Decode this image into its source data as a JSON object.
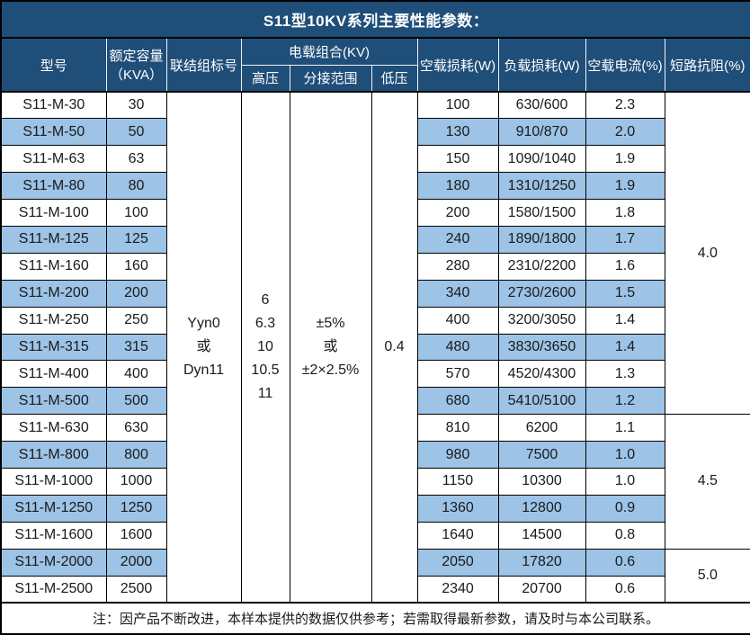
{
  "chart_data": {
    "type": "table",
    "title": "S11型10KV系列主要性能参数：",
    "columns": [
      "型号",
      "额定容量（KVA）",
      "联结组标号",
      "电载组合(KV)-高压",
      "电载组合(KV)-分接范围",
      "电载组合(KV)-低压",
      "空载损耗(W)",
      "负载损耗(W)",
      "空载电流(%)",
      "短路抗阻(%)"
    ],
    "header": {
      "model": "型号",
      "capacity_line1": "额定容量",
      "capacity_line2": "（KVA）",
      "vector_group": "联结组标号",
      "voltage_combo": "电载组合(KV)",
      "hv": "高压",
      "tap_range": "分接范围",
      "lv": "低压",
      "no_load_loss": "空载损耗(W)",
      "load_loss": "负载损耗(W)",
      "no_load_current": "空载电流(%)",
      "impedance": "短路抗阻(%)"
    },
    "merged": {
      "vector_group_lines": [
        "Yyn0",
        "或",
        "Dyn11"
      ],
      "hv_lines": [
        "6",
        "6.3",
        "10",
        "10.5",
        "11"
      ],
      "tap_lines": [
        "±5%",
        "或",
        "±2×2.5%"
      ],
      "lv": "0.4"
    },
    "impedance_groups": [
      {
        "value": "4.0",
        "row_start": 0,
        "row_span": 12
      },
      {
        "value": "4.5",
        "row_start": 12,
        "row_span": 5
      },
      {
        "value": "5.0",
        "row_start": 17,
        "row_span": 2
      }
    ],
    "rows": [
      [
        "S11-M-30",
        "30",
        "100",
        "630/600",
        "2.3"
      ],
      [
        "S11-M-50",
        "50",
        "130",
        "910/870",
        "2.0"
      ],
      [
        "S11-M-63",
        "63",
        "150",
        "1090/1040",
        "1.9"
      ],
      [
        "S11-M-80",
        "80",
        "180",
        "1310/1250",
        "1.9"
      ],
      [
        "S11-M-100",
        "100",
        "200",
        "1580/1500",
        "1.8"
      ],
      [
        "S11-M-125",
        "125",
        "240",
        "1890/1800",
        "1.7"
      ],
      [
        "S11-M-160",
        "160",
        "280",
        "2310/2200",
        "1.6"
      ],
      [
        "S11-M-200",
        "200",
        "340",
        "2730/2600",
        "1.5"
      ],
      [
        "S11-M-250",
        "250",
        "400",
        "3200/3050",
        "1.4"
      ],
      [
        "S11-M-315",
        "315",
        "480",
        "3830/3650",
        "1.4"
      ],
      [
        "S11-M-400",
        "400",
        "570",
        "4520/4300",
        "1.3"
      ],
      [
        "S11-M-500",
        "500",
        "680",
        "5410/5100",
        "1.2"
      ],
      [
        "S11-M-630",
        "630",
        "810",
        "6200",
        "1.1"
      ],
      [
        "S11-M-800",
        "800",
        "980",
        "7500",
        "1.0"
      ],
      [
        "S11-M-1000",
        "1000",
        "1150",
        "10300",
        "1.0"
      ],
      [
        "S11-M-1250",
        "1250",
        "1360",
        "12800",
        "0.9"
      ],
      [
        "S11-M-1600",
        "1600",
        "1640",
        "14500",
        "0.8"
      ],
      [
        "S11-M-2000",
        "2000",
        "2050",
        "17820",
        "0.6"
      ],
      [
        "S11-M-2500",
        "2500",
        "2340",
        "20700",
        "0.6"
      ]
    ],
    "note": "注：因产品不断改进，本样本提供的数据仅供参考；若需取得最新参数，请及时与本公司联系。",
    "colors": {
      "header_bg": "#1F4E79",
      "stripe_bg": "#9DC3E6",
      "border": "#000000",
      "header_divider": "#F2F2F2",
      "header_text": "#FFFFFF",
      "body_text": "#1A1A1A"
    }
  }
}
